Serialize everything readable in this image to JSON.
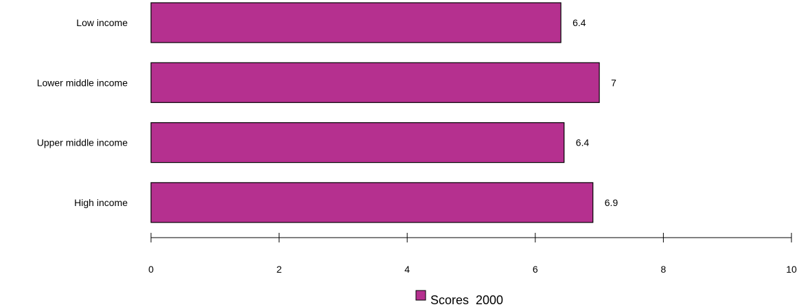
{
  "chart_data": {
    "type": "bar",
    "orientation": "horizontal",
    "categories": [
      "Low income",
      "Lower middle income",
      "Upper middle income",
      "High income"
    ],
    "series": [
      {
        "name": "Scores  2000",
        "values": [
          6.4,
          7.0,
          6.45,
          6.9
        ],
        "labels": [
          "6.4",
          "7",
          "6.4",
          "6.9"
        ]
      }
    ],
    "xlim": [
      0,
      10
    ],
    "xticks": [
      0,
      2,
      4,
      6,
      8,
      10
    ],
    "grid": false,
    "legend_position": "bottom",
    "colors": {
      "bar": "#b5308f",
      "bar_stroke": "#000000"
    }
  }
}
